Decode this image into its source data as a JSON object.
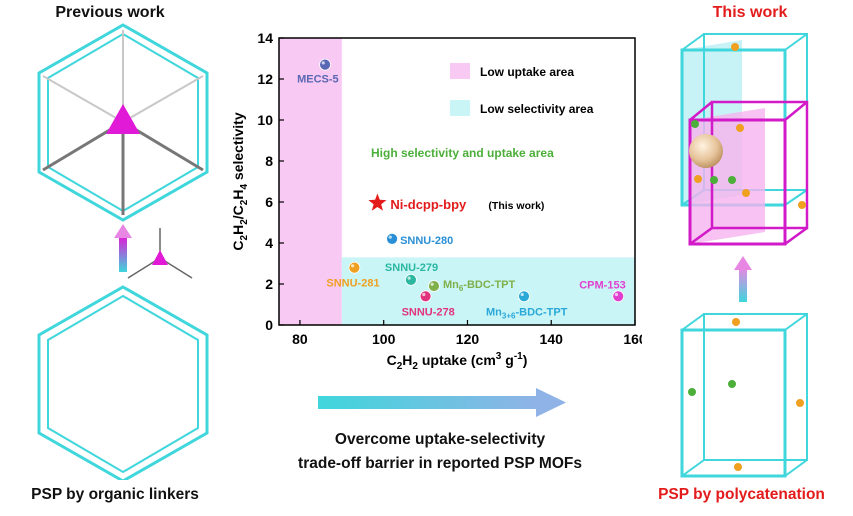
{
  "left_panel": {
    "title": "Previous work",
    "caption": "PSP by organic linkers"
  },
  "right_panel": {
    "title": "This work",
    "caption": "PSP by polycatenation"
  },
  "center": {
    "message_line1": "Overcome uptake-selectivity",
    "message_line2": "trade-off barrier in reported PSP MOFs"
  },
  "colors": {
    "cyan": "#3fd6dc",
    "magenta": "#e01ad6",
    "red": "#e31b1b",
    "low_uptake_fill": "#f8c9f3",
    "low_selectivity_fill": "#c9f5f7",
    "green_text": "#4caf3a"
  },
  "chart_data": {
    "type": "scatter",
    "xlabel": "C2H2 uptake (cm3 g-1)",
    "ylabel": "C2H2/C2H4 selectivity",
    "xlim": [
      75,
      160
    ],
    "ylim": [
      0,
      14
    ],
    "xticks": [
      80,
      100,
      120,
      140,
      160
    ],
    "yticks": [
      0,
      2,
      4,
      6,
      8,
      10,
      12,
      14
    ],
    "regions": [
      {
        "label": "Low uptake area",
        "x_range": [
          75,
          90
        ],
        "y_range": [
          0,
          14
        ],
        "color": "#f8c9f3"
      },
      {
        "label": "Low selectivity area",
        "x_range": [
          90,
          160
        ],
        "y_range": [
          0,
          3.3
        ],
        "color": "#c9f5f7"
      }
    ],
    "annotation": "High selectivity and uptake area",
    "points": [
      {
        "label": "MECS-5",
        "x": 86,
        "y": 12.7,
        "color": "#5a67b5"
      },
      {
        "label": "Ni-dcpp-bpy",
        "x": 98.5,
        "y": 5.95,
        "color": "#e31b1b",
        "marker": "star",
        "note": "(This work)"
      },
      {
        "label": "SNNU-280",
        "x": 102,
        "y": 4.2,
        "color": "#2a8fd6"
      },
      {
        "label": "SNNU-281",
        "x": 93,
        "y": 2.8,
        "color": "#f0a020"
      },
      {
        "label": "SNNU-279",
        "x": 106.5,
        "y": 2.2,
        "color": "#2bb7a0"
      },
      {
        "label": "Mn6-BDC-TPT",
        "x": 112,
        "y": 1.9,
        "color": "#7fb04a"
      },
      {
        "label": "SNNU-278",
        "x": 110,
        "y": 1.4,
        "color": "#e0357e"
      },
      {
        "label": "Mn3+6-BDC-TPT",
        "x": 133.5,
        "y": 1.4,
        "color": "#2aa8d8"
      },
      {
        "label": "CPM-153",
        "x": 156,
        "y": 1.4,
        "color": "#e040d0"
      }
    ]
  }
}
